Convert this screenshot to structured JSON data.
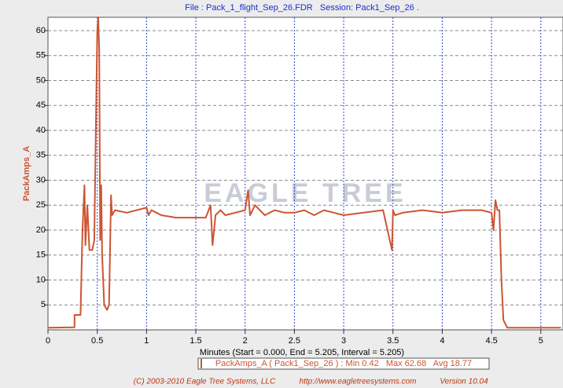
{
  "chart_data": {
    "type": "line",
    "title": "File : Pack_1_flight_Sep_26.FDR   Session: Pack1_Sep_26 .",
    "ylabel": "PackAmps_A",
    "xlabel": "Minutes (Start = 0.000, End = 5.205, Interval = 5.205)",
    "legend_label": "PackAmps_A ( Pack1_Sep_26 ) : Min 0.42   Max 62.68   Avg 18.77",
    "watermark": "EAGLE TREE",
    "footer": [
      "(C) 2003-2010 Eagle Tree Systems, LLC",
      "http://www.eagletreesystems.com",
      "Version 10.04"
    ],
    "xlim": [
      0,
      5.225
    ],
    "ylim": [
      0,
      62.68
    ],
    "xticks": [
      0,
      0.5,
      1,
      1.5,
      2,
      2.5,
      3,
      3.5,
      4,
      4.5,
      5
    ],
    "yticks": [
      5,
      10,
      15,
      20,
      25,
      30,
      35,
      40,
      45,
      50,
      55,
      60
    ],
    "grid": true,
    "x": [
      0,
      0.27,
      0.27,
      0.33,
      0.35,
      0.37,
      0.38,
      0.4,
      0.42,
      0.45,
      0.47,
      0.5,
      0.51,
      0.52,
      0.53,
      0.54,
      0.55,
      0.57,
      0.6,
      0.62,
      0.64,
      0.65,
      0.68,
      0.8,
      1.0,
      1.02,
      1.05,
      1.1,
      1.15,
      1.3,
      1.5,
      1.6,
      1.65,
      1.67,
      1.7,
      1.75,
      1.8,
      1.9,
      2.0,
      2.03,
      2.05,
      2.1,
      2.2,
      2.3,
      2.4,
      2.5,
      2.6,
      2.7,
      2.8,
      2.9,
      3.0,
      3.2,
      3.4,
      3.49,
      3.5,
      3.52,
      3.6,
      3.8,
      4.0,
      4.2,
      4.4,
      4.5,
      4.52,
      4.54,
      4.56,
      4.58,
      4.6,
      4.62,
      4.65,
      4.66,
      5.205
    ],
    "series": [
      {
        "name": "PackAmps_A",
        "color": "#cc5533",
        "values": [
          0.42,
          0.5,
          3,
          3,
          20,
          29,
          17,
          25,
          16,
          16,
          18,
          60,
          62.68,
          56,
          18,
          29,
          15,
          5,
          4,
          5,
          27,
          23,
          24,
          23.5,
          24.5,
          23,
          24,
          23.5,
          23,
          22.5,
          22.5,
          22.5,
          25,
          17,
          23,
          24,
          23,
          23.5,
          24,
          28,
          23,
          25,
          23,
          24,
          23.5,
          23.5,
          24,
          23,
          24,
          23.5,
          23,
          23.5,
          24,
          16,
          24,
          23,
          23.5,
          24,
          23.5,
          24,
          24,
          23.5,
          20,
          26,
          24,
          24,
          10,
          2,
          0.8,
          0.42,
          0.42
        ]
      }
    ]
  }
}
